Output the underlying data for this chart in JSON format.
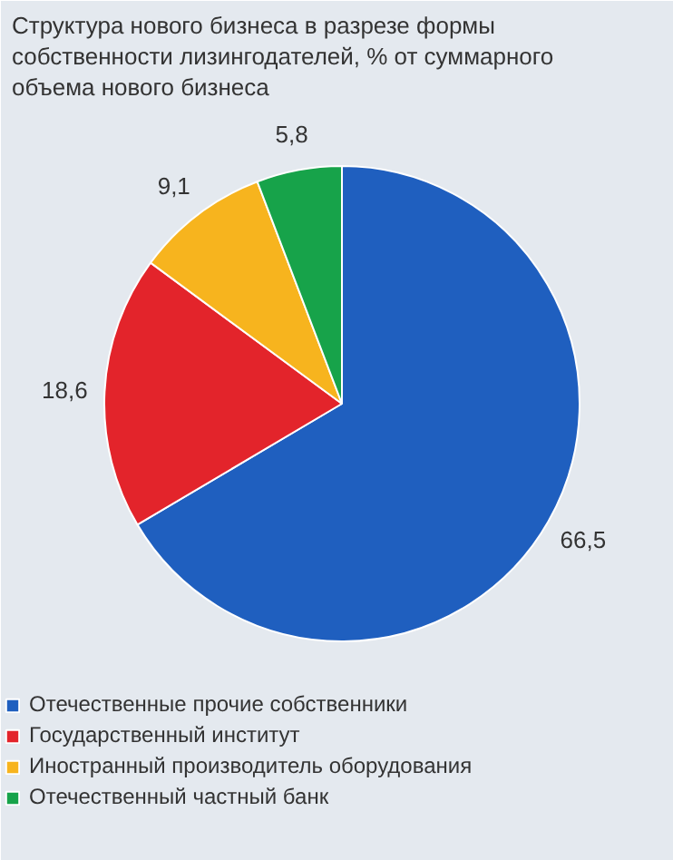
{
  "chart_data": {
    "type": "pie",
    "title": "Структура нового бизнеса в разрезе формы собственности лизингодателей, % от суммарного объема нового бизнеса",
    "categories": [
      "Отечественные прочие собственники",
      "Государственный институт",
      "Иностранный производитель оборудования",
      "Отечественный частный банк"
    ],
    "values": [
      66.5,
      18.6,
      9.1,
      5.8
    ],
    "value_labels": [
      "66,5",
      "18,6",
      "9,1",
      "5,8"
    ],
    "colors": [
      "#1f5fbf",
      "#e3242b",
      "#f7b41e",
      "#17a34a"
    ],
    "legend": "bottom"
  }
}
